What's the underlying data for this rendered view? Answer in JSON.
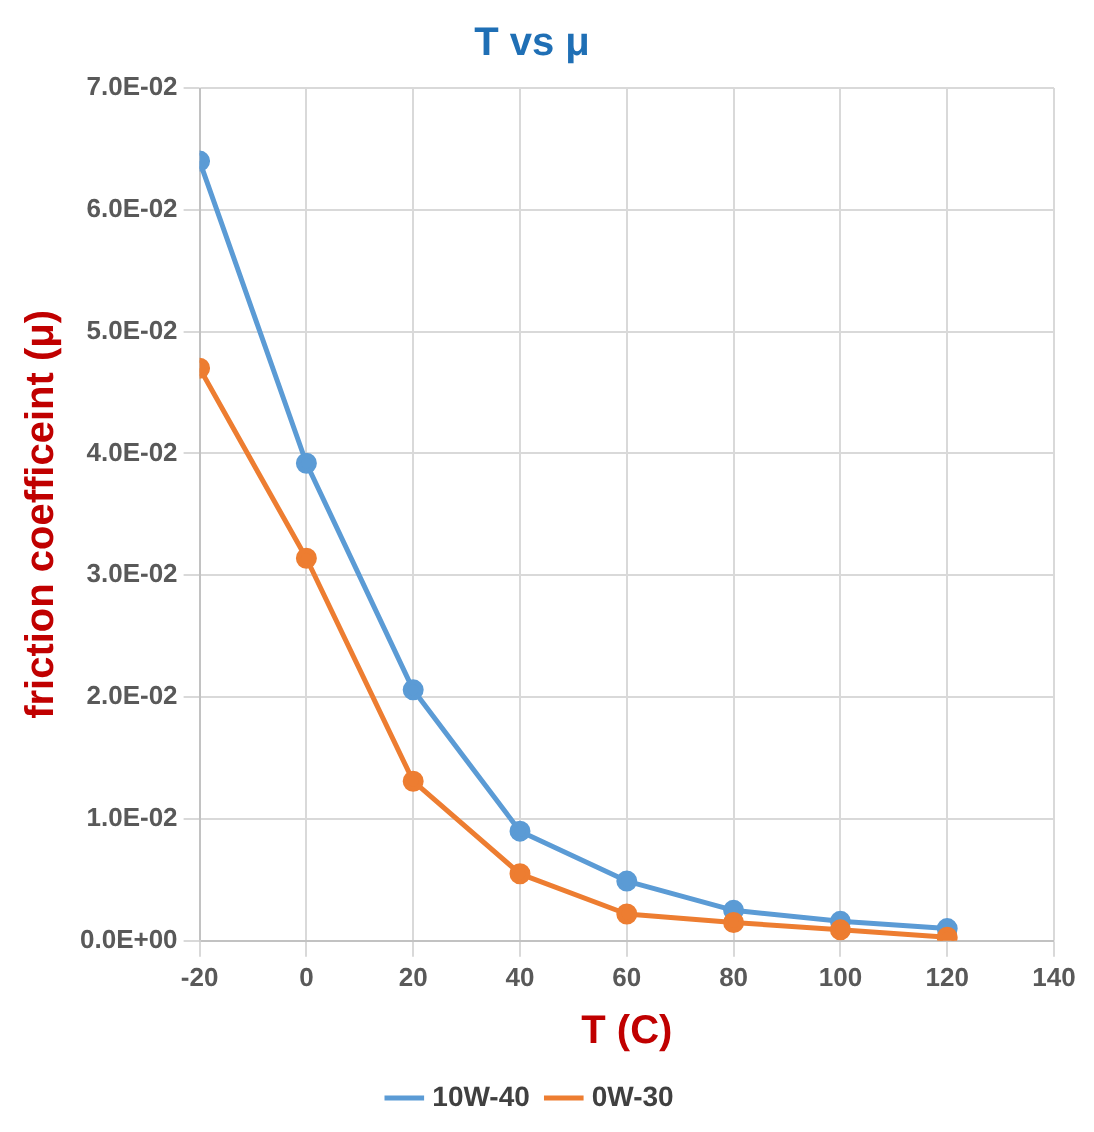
{
  "chart_data": {
    "type": "line",
    "title": "T vs μ",
    "xlabel": "T (C)",
    "ylabel": "friction coefficeint (μ)",
    "x": [
      -20,
      0,
      20,
      40,
      60,
      80,
      100,
      120
    ],
    "series": [
      {
        "name": "10W-40",
        "color": "#5b9bd5",
        "values": [
          0.064,
          0.0392,
          0.0206,
          0.009,
          0.0049,
          0.0025,
          0.0016,
          0.001
        ]
      },
      {
        "name": "0W-30",
        "color": "#ed7d31",
        "values": [
          0.047,
          0.0314,
          0.0131,
          0.0055,
          0.0022,
          0.0015,
          0.0009,
          0.0003
        ]
      }
    ],
    "xlim": [
      -20,
      140
    ],
    "xticks": [
      -20,
      0,
      20,
      40,
      60,
      80,
      100,
      120,
      140
    ],
    "ylim": [
      0,
      0.07
    ],
    "yticks": [
      {
        "value": 0,
        "label": "0.0E+00"
      },
      {
        "value": 0.01,
        "label": "1.0E-02"
      },
      {
        "value": 0.02,
        "label": "2.0E-02"
      },
      {
        "value": 0.03,
        "label": "3.0E-02"
      },
      {
        "value": 0.04,
        "label": "4.0E-02"
      },
      {
        "value": 0.05,
        "label": "5.0E-02"
      },
      {
        "value": 0.06,
        "label": "6.0E-02"
      },
      {
        "value": 0.07,
        "label": "7.0E-02"
      }
    ],
    "grid": true,
    "legend": "bottom",
    "marker": "circle",
    "line_style": "solid"
  }
}
